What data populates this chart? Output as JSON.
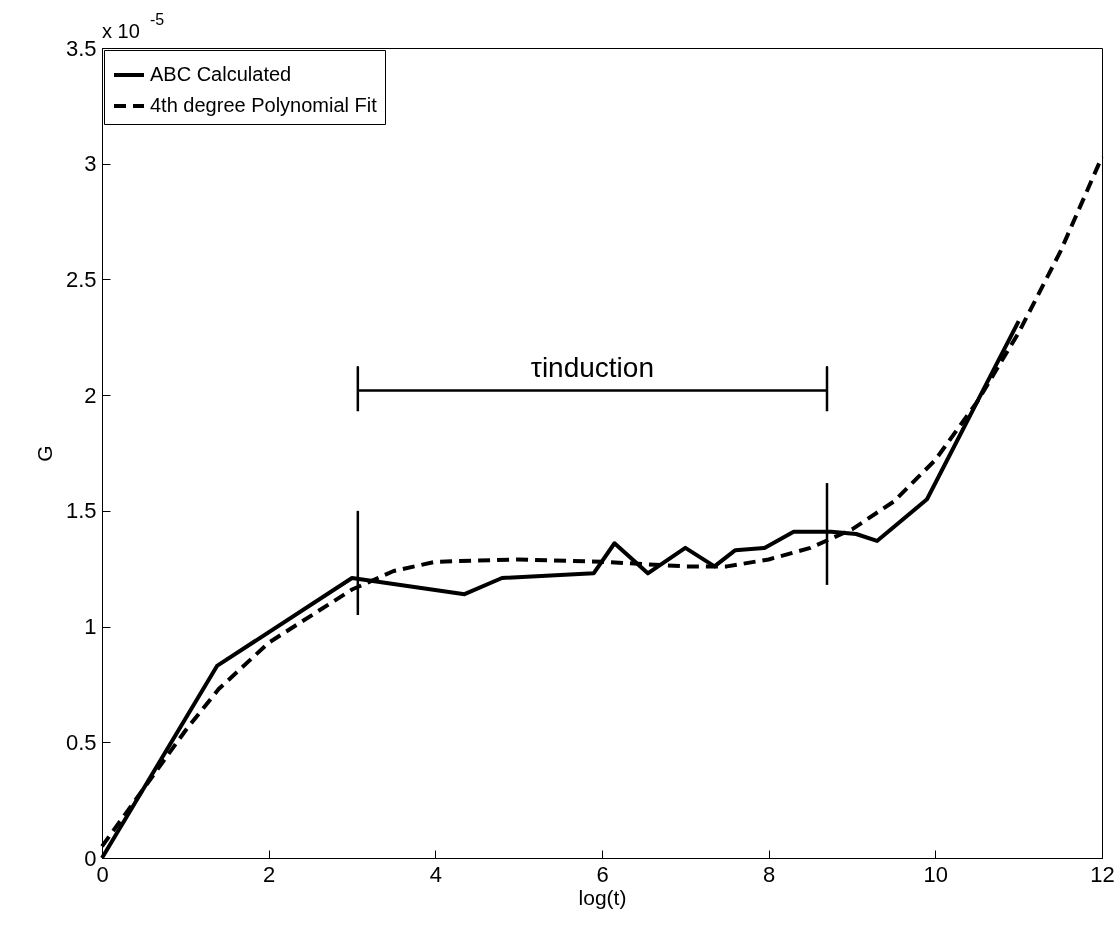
{
  "chart_data": {
    "type": "line",
    "xlabel": "log(t)",
    "ylabel": "G",
    "annotations": [
      "x 10$^{-5}$",
      {
        "text": "τinduction",
        "x": 5.885,
        "y": 2.02
      }
    ],
    "xlim": [
      0,
      12
    ],
    "xticks": [
      0,
      2,
      4,
      6,
      8,
      10,
      12
    ],
    "ylim": [
      0,
      3.5
    ],
    "yticks": [
      0,
      0.5,
      1,
      1.5,
      2,
      2.5,
      3,
      3.5
    ],
    "grid": false,
    "legend": "top left",
    "series": [
      {
        "name": "ABC Calculated",
        "color": "#000000",
        "line_style": "solid",
        "x": [
          0,
          1.38,
          3.0,
          4.35,
          4.8,
          5.9,
          6.15,
          6.55,
          7.0,
          7.35,
          7.6,
          7.95,
          8.3,
          8.75,
          9.05,
          9.3,
          9.9,
          11.0
        ],
        "values": [
          0,
          0.83,
          1.21,
          1.14,
          1.21,
          1.23,
          1.36,
          1.23,
          1.34,
          1.26,
          1.33,
          1.34,
          1.41,
          1.41,
          1.4,
          1.37,
          1.55,
          2.32
        ]
      },
      {
        "name": "4th degree Polynomial Fit",
        "color": "#000000",
        "line_style": "dashed",
        "x": [
          0,
          1,
          1.4,
          2,
          3,
          3.5,
          4,
          5,
          6,
          7,
          7.5,
          8,
          8.5,
          9,
          9.5,
          10,
          10.5,
          11,
          11.5,
          12
        ],
        "values": [
          0.05,
          0.55,
          0.73,
          0.93,
          1.16,
          1.24,
          1.28,
          1.29,
          1.28,
          1.26,
          1.26,
          1.29,
          1.34,
          1.42,
          1.54,
          1.72,
          1.97,
          2.27,
          2.62,
          3.03
        ]
      },
      {
        "color": "#000000",
        "line_style": "solid",
        "x": [
          3.07,
          3.07,
          3.07,
          8.7,
          8.7,
          8.7
        ],
        "values": [
          1.93,
          2.12,
          2.02,
          2.02,
          2.12,
          1.93
        ]
      },
      {
        "color": "#000000",
        "line_style": "solid",
        "x": [
          3.07,
          3.07
        ],
        "values": [
          1.05,
          1.5
        ]
      },
      {
        "color": "#000000",
        "line_style": "solid",
        "x": [
          8.7,
          8.7
        ],
        "values": [
          1.18,
          1.62
        ]
      }
    ]
  }
}
